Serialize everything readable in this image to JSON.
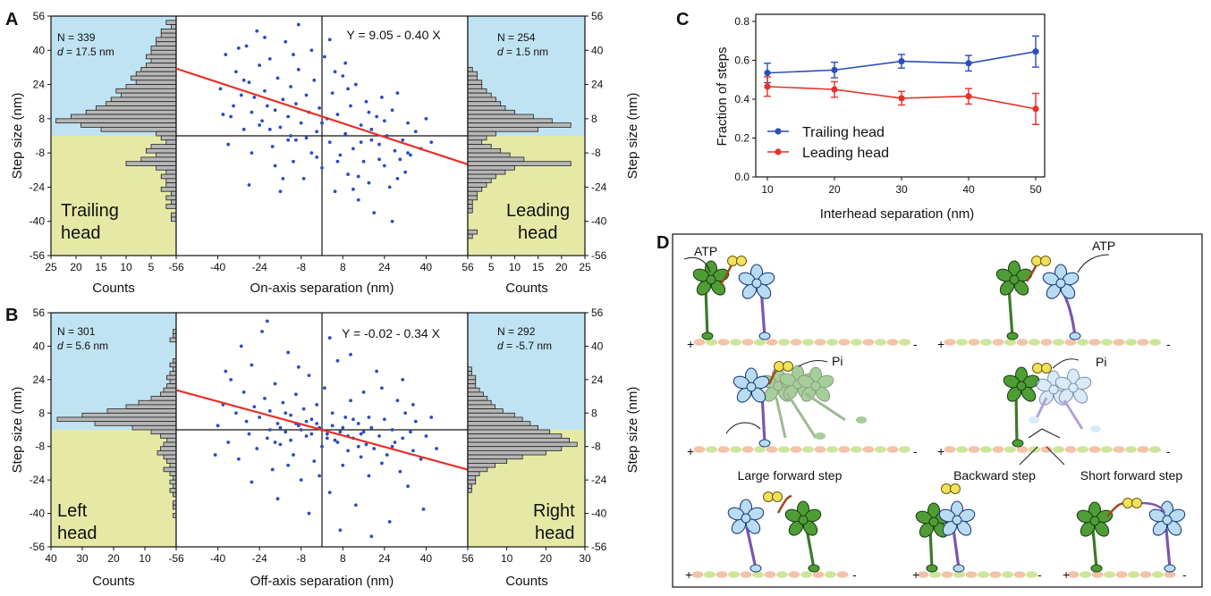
{
  "panel_labels": {
    "A": "A",
    "B": "B",
    "C": "C",
    "D": "D"
  },
  "chart_data": [
    {
      "panel": "A",
      "type": "scatter",
      "xlabel": "On-axis separation (nm)",
      "ylabel": "Step size (nm)",
      "xlim": [
        -56,
        56
      ],
      "ylim": [
        -56,
        56
      ],
      "ticks": [
        "-56",
        "-40",
        "-24",
        "-8",
        "8",
        "24",
        "40",
        "56"
      ],
      "equation": "Y = 9.05 - 0.40 X",
      "fit": {
        "intercept": 9.05,
        "slope": -0.4
      },
      "left_hist": {
        "stat_n": "N = 339",
        "stat_d_label": "d",
        "stat_d_value": " = 17.5 nm",
        "label_line1": "Trailing",
        "label_line2": "head",
        "xlabel": "Counts",
        "ticks": [
          "25",
          "20",
          "15",
          "10",
          "5",
          "0"
        ],
        "max": 25
      },
      "right_hist": {
        "stat_n": "N = 254",
        "stat_d_label": "d",
        "stat_d_value": " = 1.5 nm",
        "label_line1": "Leading",
        "label_line2": "head",
        "xlabel": "Counts",
        "ticks": [
          "0",
          "5",
          "10",
          "15",
          "20",
          "25"
        ],
        "max": 25
      },
      "left_counts": [
        0,
        2,
        1,
        3,
        3,
        4,
        4,
        5,
        5,
        6,
        5,
        6,
        7,
        8,
        9,
        8,
        10,
        12,
        11,
        13,
        14,
        16,
        18,
        21,
        24,
        19,
        15,
        4,
        3,
        2,
        5,
        6,
        4,
        7,
        10,
        4,
        2,
        3,
        2,
        2,
        3,
        1,
        2,
        1,
        2,
        0,
        1,
        1,
        0,
        0,
        0,
        0,
        0,
        0,
        0,
        0
      ],
      "right_counts": [
        0,
        0,
        0,
        0,
        0,
        0,
        0,
        0,
        0,
        0,
        0,
        0,
        1,
        2,
        2,
        3,
        3,
        4,
        5,
        6,
        7,
        8,
        10,
        14,
        18,
        22,
        15,
        6,
        4,
        3,
        5,
        7,
        9,
        12,
        22,
        10,
        8,
        6,
        5,
        4,
        3,
        2,
        2,
        1,
        1,
        1,
        0,
        0,
        0,
        0,
        2,
        1,
        0,
        0,
        0,
        0
      ],
      "points": [
        [
          -39,
          22
        ],
        [
          -37,
          38
        ],
        [
          -35,
          9
        ],
        [
          -34,
          14
        ],
        [
          -33,
          30
        ],
        [
          -31,
          19
        ],
        [
          -30,
          3
        ],
        [
          -29,
          42
        ],
        [
          -28,
          25
        ],
        [
          -27,
          11
        ],
        [
          -26,
          18
        ],
        [
          -25,
          49
        ],
        [
          -24,
          33
        ],
        [
          -23,
          7
        ],
        [
          -22,
          21
        ],
        [
          -21,
          14
        ],
        [
          -20,
          36
        ],
        [
          -19,
          -5
        ],
        [
          -18,
          12
        ],
        [
          -17,
          27
        ],
        [
          -16,
          4
        ],
        [
          -15,
          17
        ],
        [
          -14,
          44
        ],
        [
          -13,
          9
        ],
        [
          -12,
          23
        ],
        [
          -11,
          -12
        ],
        [
          -10,
          15
        ],
        [
          -9,
          31
        ],
        [
          -8,
          6
        ],
        [
          -7,
          -20
        ],
        [
          -6,
          19
        ],
        [
          -5,
          11
        ],
        [
          -4,
          -8
        ],
        [
          -3,
          26
        ],
        [
          -2,
          2
        ],
        [
          -1,
          13
        ],
        [
          0,
          -15
        ],
        [
          1,
          37
        ],
        [
          2,
          8
        ],
        [
          3,
          -3
        ],
        [
          4,
          20
        ],
        [
          5,
          -26
        ],
        [
          6,
          10
        ],
        [
          7,
          -9
        ],
        [
          8,
          28
        ],
        [
          9,
          1
        ],
        [
          10,
          -18
        ],
        [
          11,
          14
        ],
        [
          12,
          -6
        ],
        [
          13,
          24
        ],
        [
          14,
          -30
        ],
        [
          15,
          5
        ],
        [
          16,
          -12
        ],
        [
          17,
          16
        ],
        [
          18,
          -22
        ],
        [
          19,
          3
        ],
        [
          20,
          -36
        ],
        [
          21,
          9
        ],
        [
          22,
          -4
        ],
        [
          23,
          18
        ],
        [
          24,
          -14
        ],
        [
          25,
          0
        ],
        [
          26,
          -24
        ],
        [
          27,
          12
        ],
        [
          28,
          -7
        ],
        [
          29,
          20
        ],
        [
          30,
          -11
        ],
        [
          31,
          -2
        ],
        [
          32,
          -17
        ],
        [
          33,
          6
        ],
        [
          34,
          -9
        ],
        [
          36,
          2
        ],
        [
          38,
          -6
        ],
        [
          40,
          8
        ],
        [
          42,
          -3
        ],
        [
          -36,
          -4
        ],
        [
          -32,
          41
        ],
        [
          -27,
          -8
        ],
        [
          -22,
          46
        ],
        [
          -18,
          -14
        ],
        [
          -13,
          -2
        ],
        [
          -9,
          52
        ],
        [
          -4,
          40
        ],
        [
          3,
          45
        ],
        [
          9,
          34
        ],
        [
          14,
          -19
        ],
        [
          19,
          -2
        ],
        [
          24,
          7
        ],
        [
          29,
          -20
        ],
        [
          -38,
          10
        ],
        [
          -24,
          5
        ],
        [
          -15,
          -20
        ],
        [
          -11,
          38
        ],
        [
          -6,
          -1
        ],
        [
          0,
          6
        ],
        [
          6,
          -12
        ],
        [
          12,
          -25
        ],
        [
          18,
          11
        ],
        [
          27,
          -40
        ],
        [
          -30,
          26
        ],
        [
          -20,
          3
        ],
        [
          -10,
          -2
        ],
        [
          -2,
          -10
        ],
        [
          5,
          30
        ],
        [
          10,
          22
        ],
        [
          15,
          -3
        ],
        [
          22,
          -11
        ],
        [
          33,
          -8
        ],
        [
          -28,
          -23
        ],
        [
          -16,
          -26
        ],
        [
          -12,
          0
        ]
      ]
    },
    {
      "panel": "B",
      "type": "scatter",
      "xlabel": "Off-axis separation (nm)",
      "ylabel": "Step size (nm)",
      "xlim": [
        -56,
        56
      ],
      "ylim": [
        -56,
        56
      ],
      "ticks": [
        "-56",
        "-40",
        "-24",
        "-8",
        "8",
        "24",
        "40",
        "56"
      ],
      "equation": "Y = -0.02 - 0.34 X",
      "fit": {
        "intercept": -0.02,
        "slope": -0.34
      },
      "left_hist": {
        "stat_n": "N = 301",
        "stat_d_label": "d",
        "stat_d_value": " = 5.6 nm",
        "label_line1": "Left",
        "label_line2": "head",
        "xlabel": "Counts",
        "ticks": [
          "40",
          "30",
          "20",
          "10",
          "0"
        ],
        "max": 40
      },
      "right_hist": {
        "stat_n": "N = 292",
        "stat_d_label": "d",
        "stat_d_value": " = -5.7 nm",
        "label_line1": "Right",
        "label_line2": "head",
        "xlabel": "Counts",
        "ticks": [
          "0",
          "10",
          "20",
          "30"
        ],
        "max": 30
      },
      "left_counts": [
        0,
        0,
        0,
        0,
        1,
        1,
        2,
        0,
        0,
        0,
        0,
        1,
        2,
        1,
        2,
        3,
        2,
        3,
        4,
        5,
        8,
        12,
        16,
        22,
        30,
        38,
        26,
        14,
        8,
        5,
        3,
        4,
        5,
        6,
        4,
        3,
        2,
        4,
        2,
        1,
        2,
        1,
        2,
        1,
        0,
        1,
        1,
        0,
        1,
        0,
        0,
        0,
        0,
        0,
        0,
        0
      ],
      "right_counts": [
        0,
        0,
        0,
        0,
        0,
        0,
        0,
        0,
        0,
        0,
        0,
        0,
        0,
        1,
        1,
        2,
        2,
        2,
        3,
        4,
        5,
        6,
        7,
        9,
        12,
        14,
        16,
        18,
        21,
        24,
        26,
        28,
        24,
        20,
        14,
        10,
        7,
        5,
        3,
        2,
        2,
        1,
        1,
        0,
        0,
        0,
        0,
        0,
        0,
        0,
        0,
        0,
        0,
        0,
        0,
        0
      ],
      "points": [
        [
          -40,
          2
        ],
        [
          -38,
          12
        ],
        [
          -36,
          -6
        ],
        [
          -35,
          24
        ],
        [
          -33,
          8
        ],
        [
          -32,
          -14
        ],
        [
          -30,
          18
        ],
        [
          -29,
          4
        ],
        [
          -28,
          -2
        ],
        [
          -27,
          31
        ],
        [
          -26,
          11
        ],
        [
          -25,
          -9
        ],
        [
          -24,
          6
        ],
        [
          -23,
          47
        ],
        [
          -22,
          15
        ],
        [
          -21,
          -4
        ],
        [
          -20,
          9
        ],
        [
          -19,
          -19
        ],
        [
          -18,
          22
        ],
        [
          -17,
          3
        ],
        [
          -16,
          -7
        ],
        [
          -15,
          13
        ],
        [
          -14,
          -1
        ],
        [
          -13,
          37
        ],
        [
          -12,
          7
        ],
        [
          -11,
          -12
        ],
        [
          -10,
          17
        ],
        [
          -9,
          2
        ],
        [
          -8,
          -24
        ],
        [
          -7,
          10
        ],
        [
          -6,
          -3
        ],
        [
          -5,
          26
        ],
        [
          -4,
          5
        ],
        [
          -3,
          -15
        ],
        [
          -2,
          12
        ],
        [
          -1,
          1
        ],
        [
          0,
          -8
        ],
        [
          1,
          20
        ],
        [
          2,
          -2
        ],
        [
          3,
          -30
        ],
        [
          4,
          8
        ],
        [
          5,
          -5
        ],
        [
          6,
          33
        ],
        [
          7,
          -1
        ],
        [
          8,
          -17
        ],
        [
          9,
          6
        ],
        [
          10,
          -10
        ],
        [
          11,
          14
        ],
        [
          12,
          -4
        ],
        [
          13,
          -36
        ],
        [
          14,
          3
        ],
        [
          15,
          -13
        ],
        [
          16,
          18
        ],
        [
          17,
          -7
        ],
        [
          18,
          -22
        ],
        [
          19,
          1
        ],
        [
          20,
          -9
        ],
        [
          21,
          28
        ],
        [
          22,
          -3
        ],
        [
          23,
          -16
        ],
        [
          24,
          5
        ],
        [
          25,
          -12
        ],
        [
          26,
          -44
        ],
        [
          27,
          0
        ],
        [
          28,
          -6
        ],
        [
          29,
          14
        ],
        [
          30,
          -20
        ],
        [
          31,
          -4
        ],
        [
          32,
          8
        ],
        [
          33,
          -27
        ],
        [
          34,
          -1
        ],
        [
          35,
          -10
        ],
        [
          36,
          4
        ],
        [
          38,
          -14
        ],
        [
          40,
          -3
        ],
        [
          42,
          6
        ],
        [
          44,
          -9
        ],
        [
          -41,
          -12
        ],
        [
          -37,
          28
        ],
        [
          -31,
          40
        ],
        [
          -27,
          -25
        ],
        [
          -21,
          52
        ],
        [
          -17,
          -33
        ],
        [
          -13,
          -17
        ],
        [
          -9,
          30
        ],
        [
          -5,
          -40
        ],
        [
          -1,
          -22
        ],
        [
          3,
          44
        ],
        [
          7,
          -48
        ],
        [
          11,
          36
        ],
        [
          15,
          -2
        ],
        [
          19,
          -51
        ],
        [
          23,
          20
        ],
        [
          27,
          -8
        ],
        [
          31,
          24
        ],
        [
          35,
          12
        ],
        [
          39,
          -38
        ],
        [
          -8,
          0
        ],
        [
          -6,
          4
        ],
        [
          -4,
          -2
        ],
        [
          -2,
          3
        ],
        [
          0,
          0
        ],
        [
          2,
          -4
        ],
        [
          4,
          2
        ],
        [
          6,
          -6
        ],
        [
          8,
          1
        ],
        [
          -10,
          3
        ],
        [
          10,
          -3
        ],
        [
          -12,
          -5
        ],
        [
          12,
          5
        ],
        [
          -14,
          8
        ],
        [
          14,
          -8
        ],
        [
          -16,
          1
        ],
        [
          16,
          -1
        ],
        [
          -18,
          -6
        ],
        [
          18,
          6
        ],
        [
          -20,
          0
        ]
      ]
    },
    {
      "panel": "C",
      "type": "line",
      "xlabel": "Interhead separation (nm)",
      "ylabel": "Fraction of steps",
      "x": [
        10,
        20,
        30,
        40,
        50
      ],
      "x_ticks": [
        "10",
        "20",
        "30",
        "40",
        "50"
      ],
      "y_ticks": [
        "0.0",
        "0.2",
        "0.4",
        "0.6",
        "0.8"
      ],
      "ylim": [
        0,
        0.8
      ],
      "series": [
        {
          "name": "Trailing head",
          "color": "#2a4fb8",
          "values": [
            0.535,
            0.55,
            0.595,
            0.585,
            0.645
          ],
          "errors": [
            0.05,
            0.04,
            0.035,
            0.04,
            0.08
          ]
        },
        {
          "name": "Leading head",
          "color": "#e8302a",
          "values": [
            0.465,
            0.45,
            0.405,
            0.415,
            0.35
          ],
          "errors": [
            0.05,
            0.04,
            0.035,
            0.04,
            0.08
          ]
        }
      ]
    }
  ],
  "diagram": {
    "atp_left": "ATP",
    "atp_right": "ATP",
    "pi_left": "Pi",
    "pi_right": "Pi",
    "caption_large": "Large forward step",
    "caption_backward": "Backward step",
    "caption_short": "Short forward step",
    "plus": "+",
    "minus": "-"
  },
  "colors": {
    "blue_bg": "#bfe3f2",
    "yellow_bg": "#e6e9a6",
    "scatter_point": "#2b4ec0",
    "fit_line": "#e8302a",
    "hist_fill": "#b6b6b6",
    "motor_green": "#4f9e35",
    "motor_blue": "#b9dcf2",
    "stalk_purple": "#7a56b0",
    "stalk_green": "#3a7a2a",
    "linker": "#9c4a1e",
    "atp_yellow": "#f1e05a",
    "mt_pink": "#f3c2a8",
    "mt_green": "#cde59a"
  }
}
